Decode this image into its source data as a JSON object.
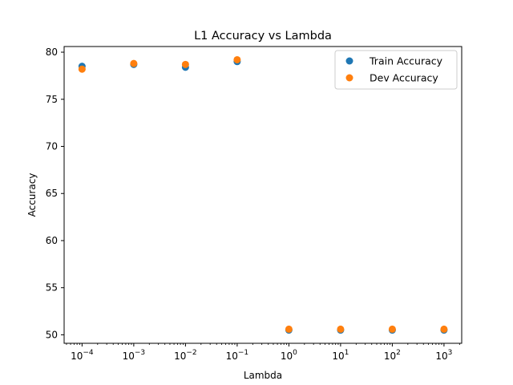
{
  "chart_data": {
    "type": "scatter",
    "title": "L1 Accuracy vs Lambda",
    "xlabel": "Lambda",
    "ylabel": "Accuracy",
    "xscale": "log",
    "xlim": [
      4.5e-05,
      2200
    ],
    "ylim": [
      49.1,
      80.6
    ],
    "x": [
      0.0001,
      0.001,
      0.01,
      0.1,
      1,
      10,
      100,
      1000
    ],
    "x_ticks": [
      {
        "value": 0.0001,
        "base": "10",
        "exp": "−4"
      },
      {
        "value": 0.001,
        "base": "10",
        "exp": "−3"
      },
      {
        "value": 0.01,
        "base": "10",
        "exp": "−2"
      },
      {
        "value": 0.1,
        "base": "10",
        "exp": "−1"
      },
      {
        "value": 1,
        "base": "10",
        "exp": "0"
      },
      {
        "value": 10,
        "base": "10",
        "exp": "1"
      },
      {
        "value": 100,
        "base": "10",
        "exp": "2"
      },
      {
        "value": 1000,
        "base": "10",
        "exp": "3"
      }
    ],
    "y_ticks": [
      50,
      55,
      60,
      65,
      70,
      75,
      80
    ],
    "grid": false,
    "legend_position": "top-right",
    "series": [
      {
        "name": "Train Accuracy",
        "color": "#1f77b4",
        "values": [
          78.5,
          78.7,
          78.4,
          79.0,
          50.5,
          50.5,
          50.5,
          50.5
        ]
      },
      {
        "name": "Dev Accuracy",
        "color": "#ff7f0e",
        "values": [
          78.2,
          78.8,
          78.7,
          79.2,
          50.6,
          50.6,
          50.6,
          50.6
        ]
      }
    ]
  }
}
